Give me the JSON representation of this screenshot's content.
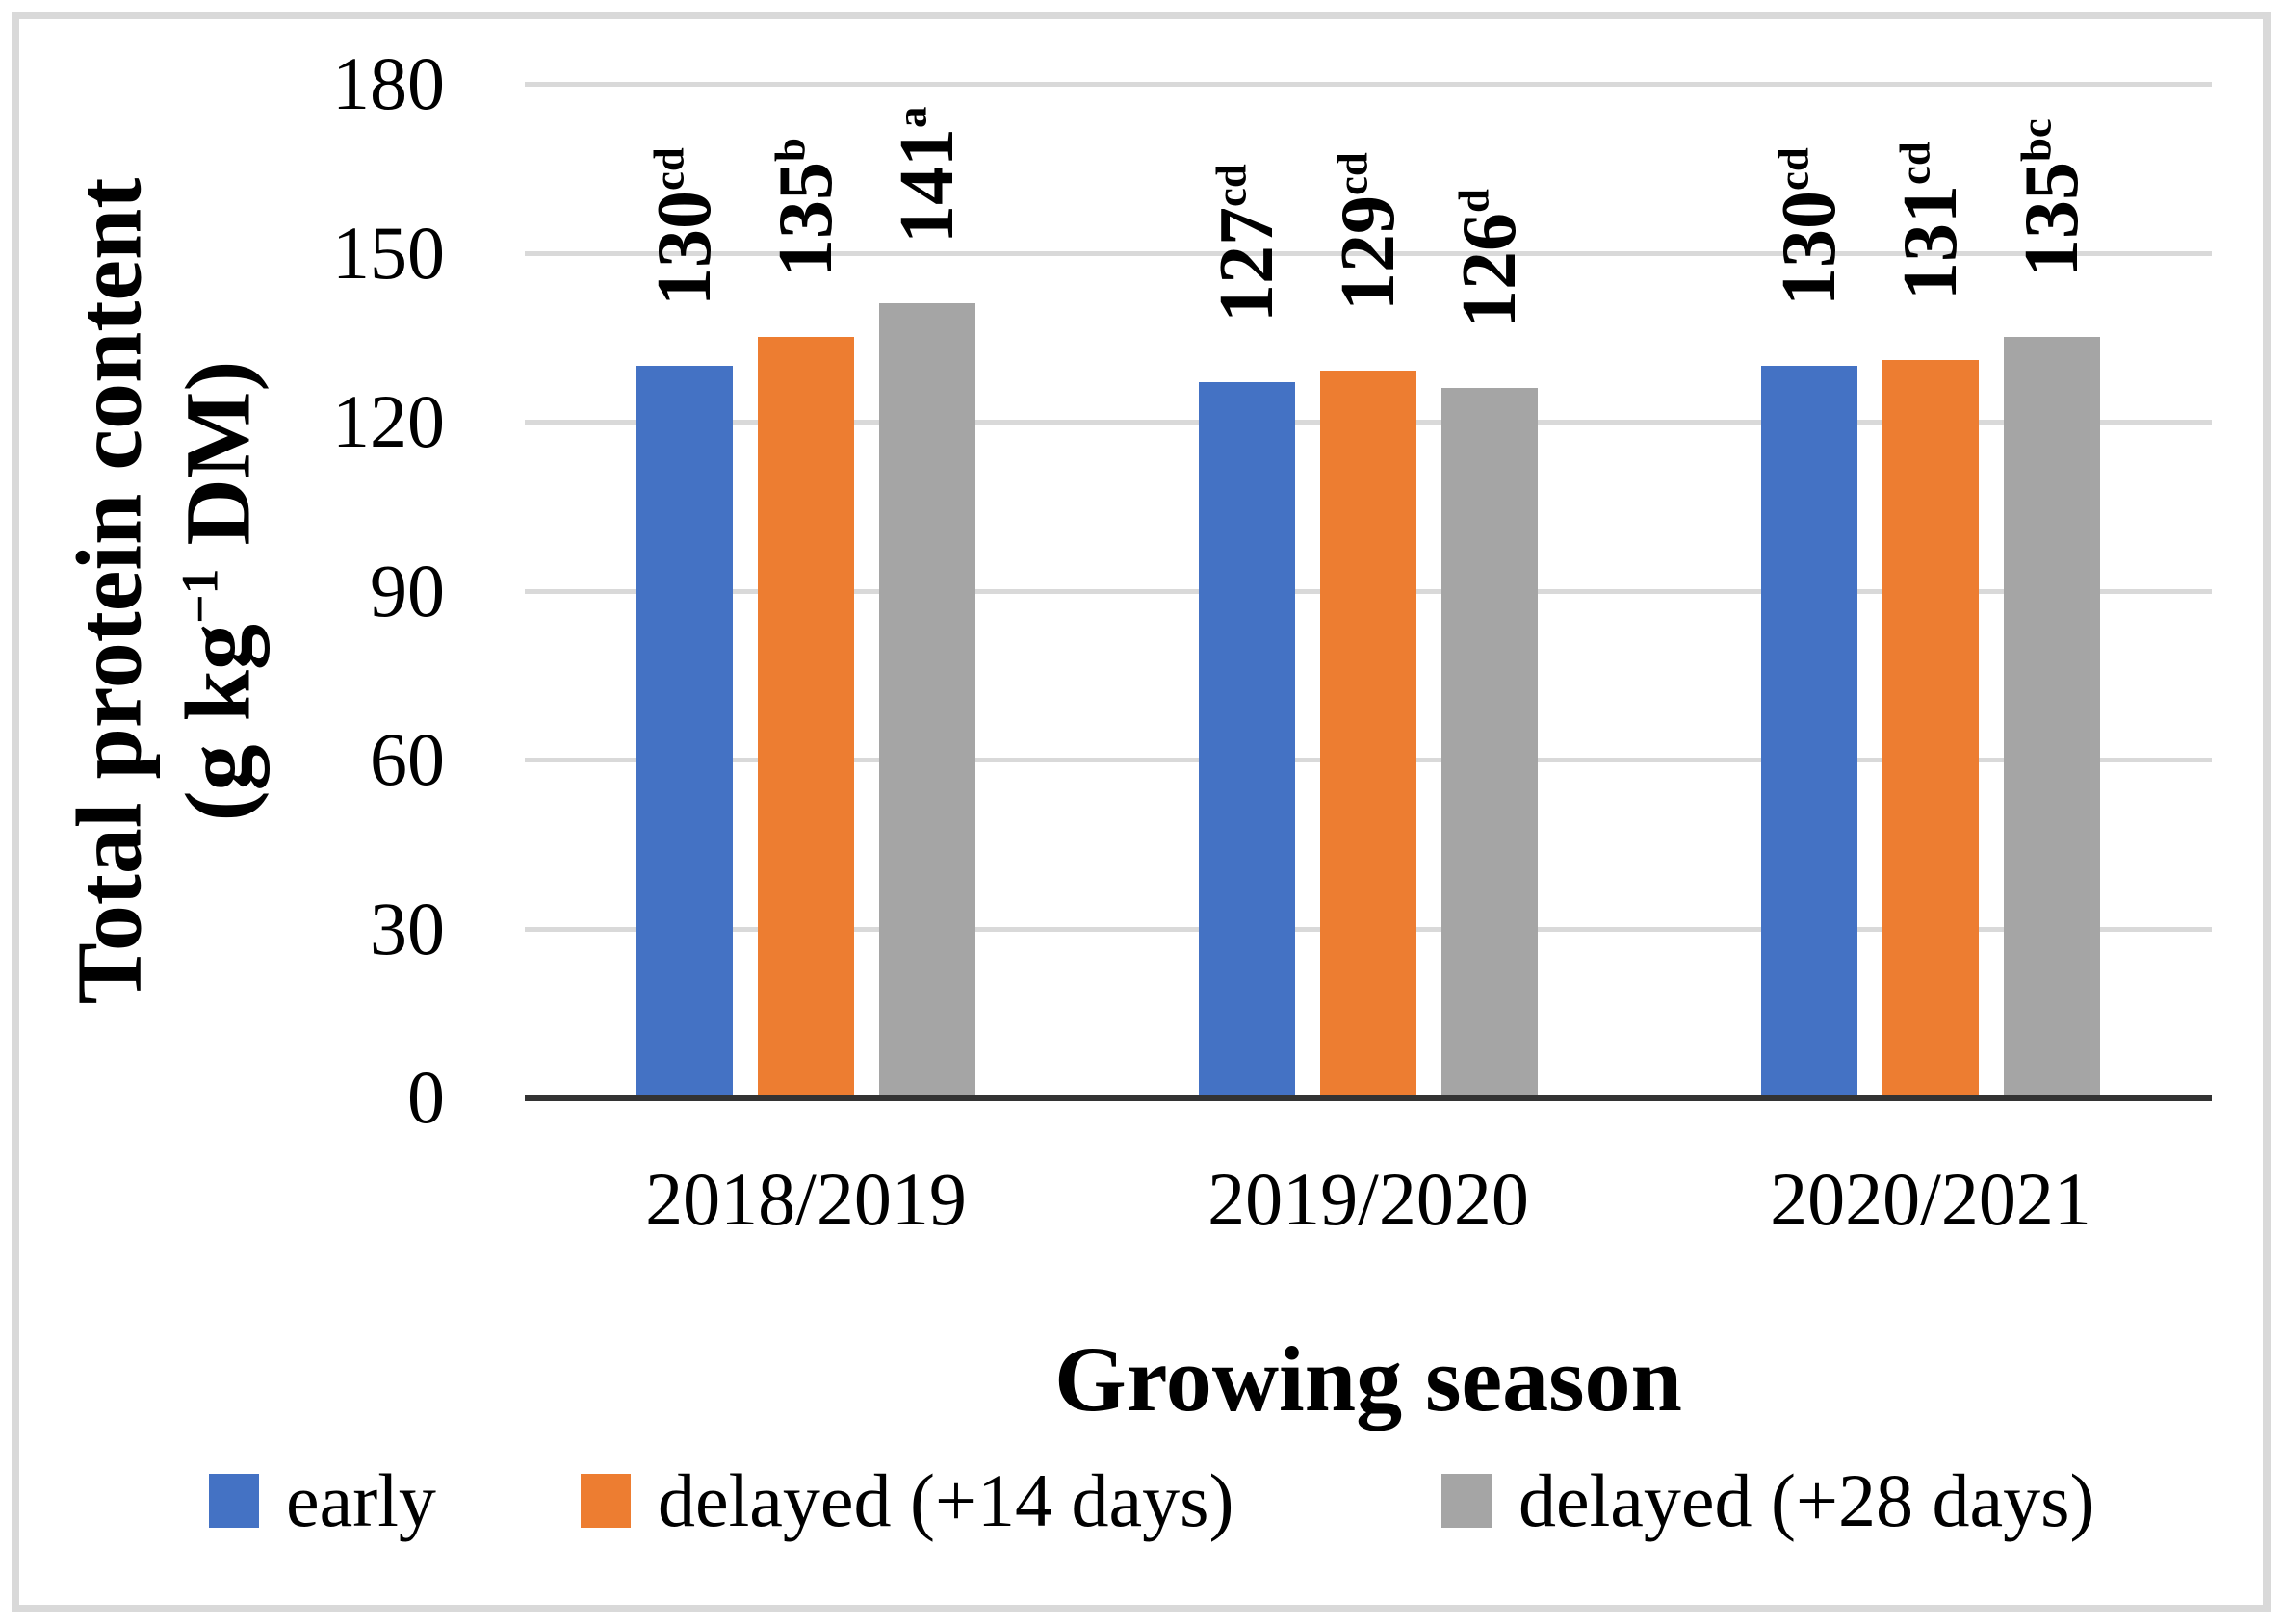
{
  "figure": {
    "background": "#FFFFFF",
    "border_color": "#D9D9D9"
  },
  "chart_data": {
    "type": "bar",
    "title": "",
    "categories": [
      "2018/2019",
      "2019/2020",
      "2020/2021"
    ],
    "series": [
      {
        "name": "early",
        "color": "#4472C4",
        "values": [
          130,
          127,
          130
        ],
        "label_sups": [
          "cd",
          "cd",
          "cd"
        ]
      },
      {
        "name": "delayed (+14 days)",
        "color": "#ED7D31",
        "values": [
          135,
          129,
          131
        ],
        "label_sups": [
          "b",
          "cd",
          "cd"
        ]
      },
      {
        "name": "delayed (+28 days)",
        "color": "#A5A5A5",
        "values": [
          141,
          126,
          135
        ],
        "label_sups": [
          "a",
          "d",
          "bc"
        ]
      }
    ],
    "data_labels": [
      [
        "130cd",
        "135b",
        "141a"
      ],
      [
        "127cd",
        "129cd",
        "126d"
      ],
      [
        "130cd",
        "131cd",
        "135bc"
      ]
    ],
    "xlabel": "Growing season",
    "ylabel_line1": "Total protein content",
    "ylabel_line2_pre": "(g kg",
    "ylabel_line2_sup": "−1",
    "ylabel_line2_post": " DM)",
    "ylim": [
      0,
      180
    ],
    "yticks": [
      0,
      30,
      60,
      90,
      120,
      150,
      180
    ],
    "grid": "horizontal",
    "gridline_color": "#D9D9D9",
    "axis_line_color": "#333333",
    "text_color": "#000000",
    "legend_position": "bottom"
  }
}
